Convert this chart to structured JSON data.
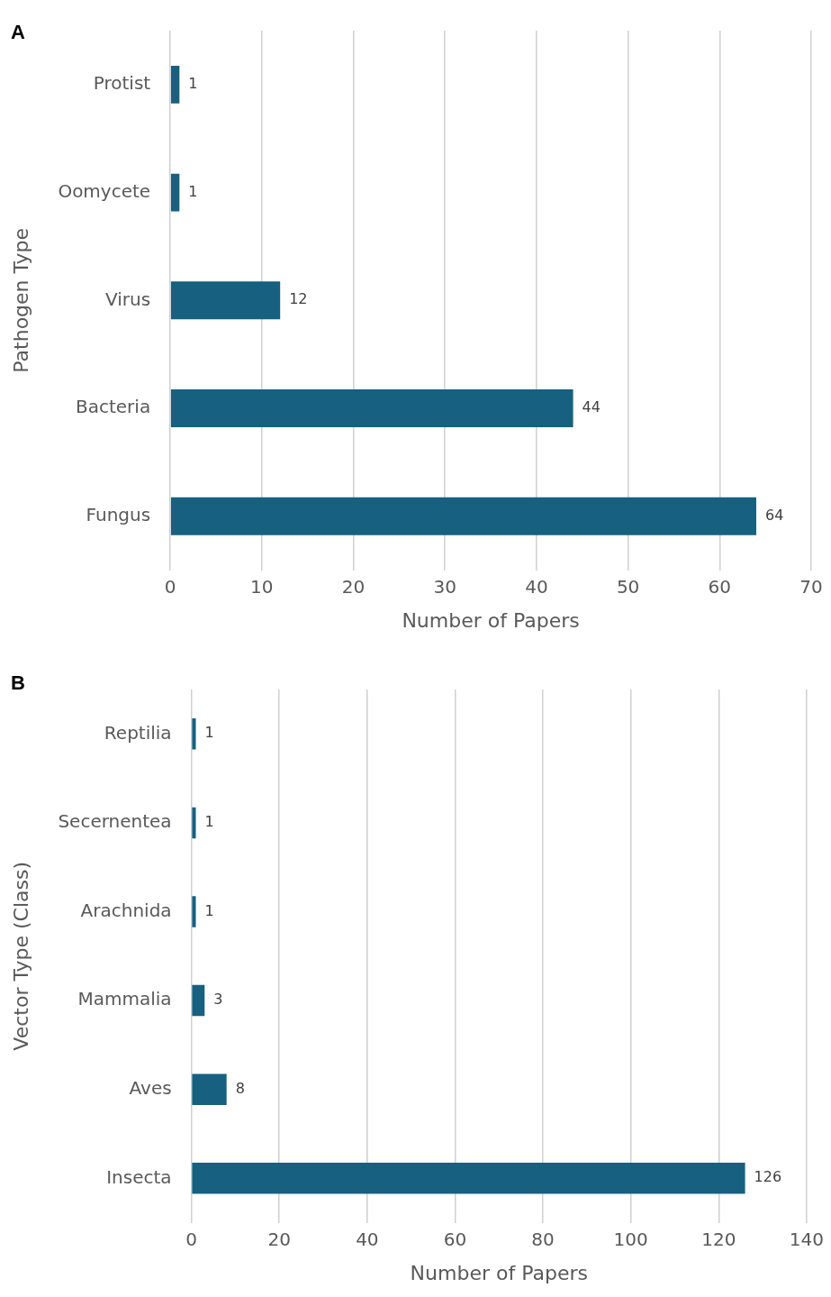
{
  "chart_data": [
    {
      "type": "bar",
      "title": "A",
      "xlabel": "Number of Papers",
      "ylabel": "Pathogen Type",
      "orientation": "horizontal",
      "categories": [
        "Protist",
        "Oomycete",
        "Virus",
        "Bacteria",
        "Fungus"
      ],
      "values": [
        1,
        1,
        12,
        44,
        64
      ],
      "color": "#17607f",
      "xlim": [
        0,
        70
      ],
      "xticks": [
        0,
        10,
        20,
        30,
        40,
        50,
        60,
        70
      ],
      "grid": "x",
      "data_labels": true
    },
    {
      "type": "bar",
      "title": "B",
      "xlabel": "Number of Papers",
      "ylabel": "Vector Type (Class)",
      "orientation": "horizontal",
      "categories": [
        "Reptilia",
        "Secernentea",
        "Arachnida",
        "Mammalia",
        "Aves",
        "Insecta"
      ],
      "values": [
        1,
        1,
        1,
        3,
        8,
        126
      ],
      "color": "#17607f",
      "xlim": [
        0,
        140
      ],
      "xticks": [
        0,
        20,
        40,
        60,
        80,
        100,
        120,
        140
      ],
      "grid": "x",
      "data_labels": true
    }
  ]
}
